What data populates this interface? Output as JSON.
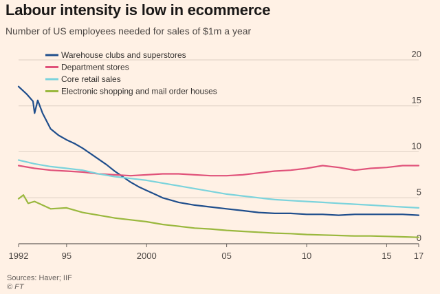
{
  "chart_data": {
    "type": "line",
    "title": "Labour intensity is low in ecommerce",
    "subtitle": "Number of US employees needed for sales of $1m a year",
    "source": "Sources: Haver; IIF",
    "credit": "© FT",
    "xlim": [
      1992,
      2017
    ],
    "ylim": [
      0,
      20
    ],
    "y_ticks": [
      0,
      5,
      10,
      15,
      20
    ],
    "x_ticks": [
      {
        "value": 1992,
        "label": "1992"
      },
      {
        "value": 1995,
        "label": "95"
      },
      {
        "value": 2000,
        "label": "2000"
      },
      {
        "value": 2005,
        "label": "05"
      },
      {
        "value": 2010,
        "label": "10"
      },
      {
        "value": 2015,
        "label": "15"
      },
      {
        "value": 2017,
        "label": "17"
      }
    ],
    "grid": true,
    "legend_position": "top-left",
    "series": [
      {
        "name": "Warehouse clubs and superstores",
        "color": "#1f4e8c",
        "x": [
          1992,
          1992.5,
          1992.9,
          1993,
          1993.2,
          1993.5,
          1994,
          1994.5,
          1995,
          1995.5,
          1996,
          1996.5,
          1997,
          1997.5,
          1998,
          1998.5,
          1999,
          1999.5,
          2000,
          2000.5,
          2001,
          2002,
          2003,
          2004,
          2005,
          2006,
          2007,
          2008,
          2009,
          2010,
          2011,
          2012,
          2013,
          2014,
          2015,
          2016,
          2017
        ],
        "values": [
          17.1,
          16.3,
          15.5,
          14.2,
          15.6,
          14.2,
          12.5,
          11.8,
          11.3,
          10.9,
          10.4,
          9.8,
          9.2,
          8.6,
          7.9,
          7.3,
          6.7,
          6.2,
          5.8,
          5.4,
          5.0,
          4.5,
          4.2,
          4.0,
          3.8,
          3.6,
          3.4,
          3.3,
          3.3,
          3.2,
          3.2,
          3.1,
          3.2,
          3.2,
          3.2,
          3.2,
          3.1
        ]
      },
      {
        "name": "Department stores",
        "color": "#e0527a",
        "x": [
          1992,
          1993,
          1994,
          1995,
          1996,
          1997,
          1998,
          1999,
          2000,
          2001,
          2002,
          2003,
          2004,
          2005,
          2006,
          2007,
          2008,
          2009,
          2010,
          2011,
          2012,
          2013,
          2014,
          2015,
          2016,
          2017
        ],
        "values": [
          8.5,
          8.2,
          8.0,
          7.9,
          7.8,
          7.6,
          7.5,
          7.4,
          7.5,
          7.6,
          7.6,
          7.5,
          7.4,
          7.4,
          7.5,
          7.7,
          7.9,
          8.0,
          8.2,
          8.5,
          8.3,
          8.0,
          8.2,
          8.3,
          8.5,
          8.5
        ]
      },
      {
        "name": "Core retail sales",
        "color": "#7bd3dc",
        "x": [
          1992,
          1993,
          1994,
          1995,
          1996,
          1997,
          1998,
          1999,
          2000,
          2001,
          2002,
          2003,
          2004,
          2005,
          2006,
          2007,
          2008,
          2009,
          2010,
          2011,
          2012,
          2013,
          2014,
          2015,
          2016,
          2017
        ],
        "values": [
          9.1,
          8.7,
          8.4,
          8.2,
          8.0,
          7.6,
          7.3,
          7.1,
          6.9,
          6.6,
          6.3,
          6.0,
          5.7,
          5.4,
          5.2,
          5.0,
          4.8,
          4.7,
          4.6,
          4.5,
          4.4,
          4.3,
          4.2,
          4.1,
          4.0,
          3.9
        ]
      },
      {
        "name": "Electronic shopping and mail order houses",
        "color": "#9ab83e",
        "x": [
          1992,
          1992.3,
          1992.6,
          1993,
          1993.5,
          1994,
          1995,
          1996,
          1997,
          1998,
          1999,
          2000,
          2001,
          2002,
          2003,
          2004,
          2005,
          2006,
          2007,
          2008,
          2009,
          2010,
          2011,
          2012,
          2013,
          2014,
          2015,
          2016,
          2017
        ],
        "values": [
          4.9,
          5.3,
          4.4,
          4.6,
          4.2,
          3.8,
          3.9,
          3.4,
          3.1,
          2.8,
          2.6,
          2.4,
          2.1,
          1.9,
          1.7,
          1.6,
          1.45,
          1.35,
          1.25,
          1.15,
          1.1,
          1.0,
          0.95,
          0.9,
          0.85,
          0.85,
          0.8,
          0.75,
          0.7
        ]
      }
    ]
  }
}
